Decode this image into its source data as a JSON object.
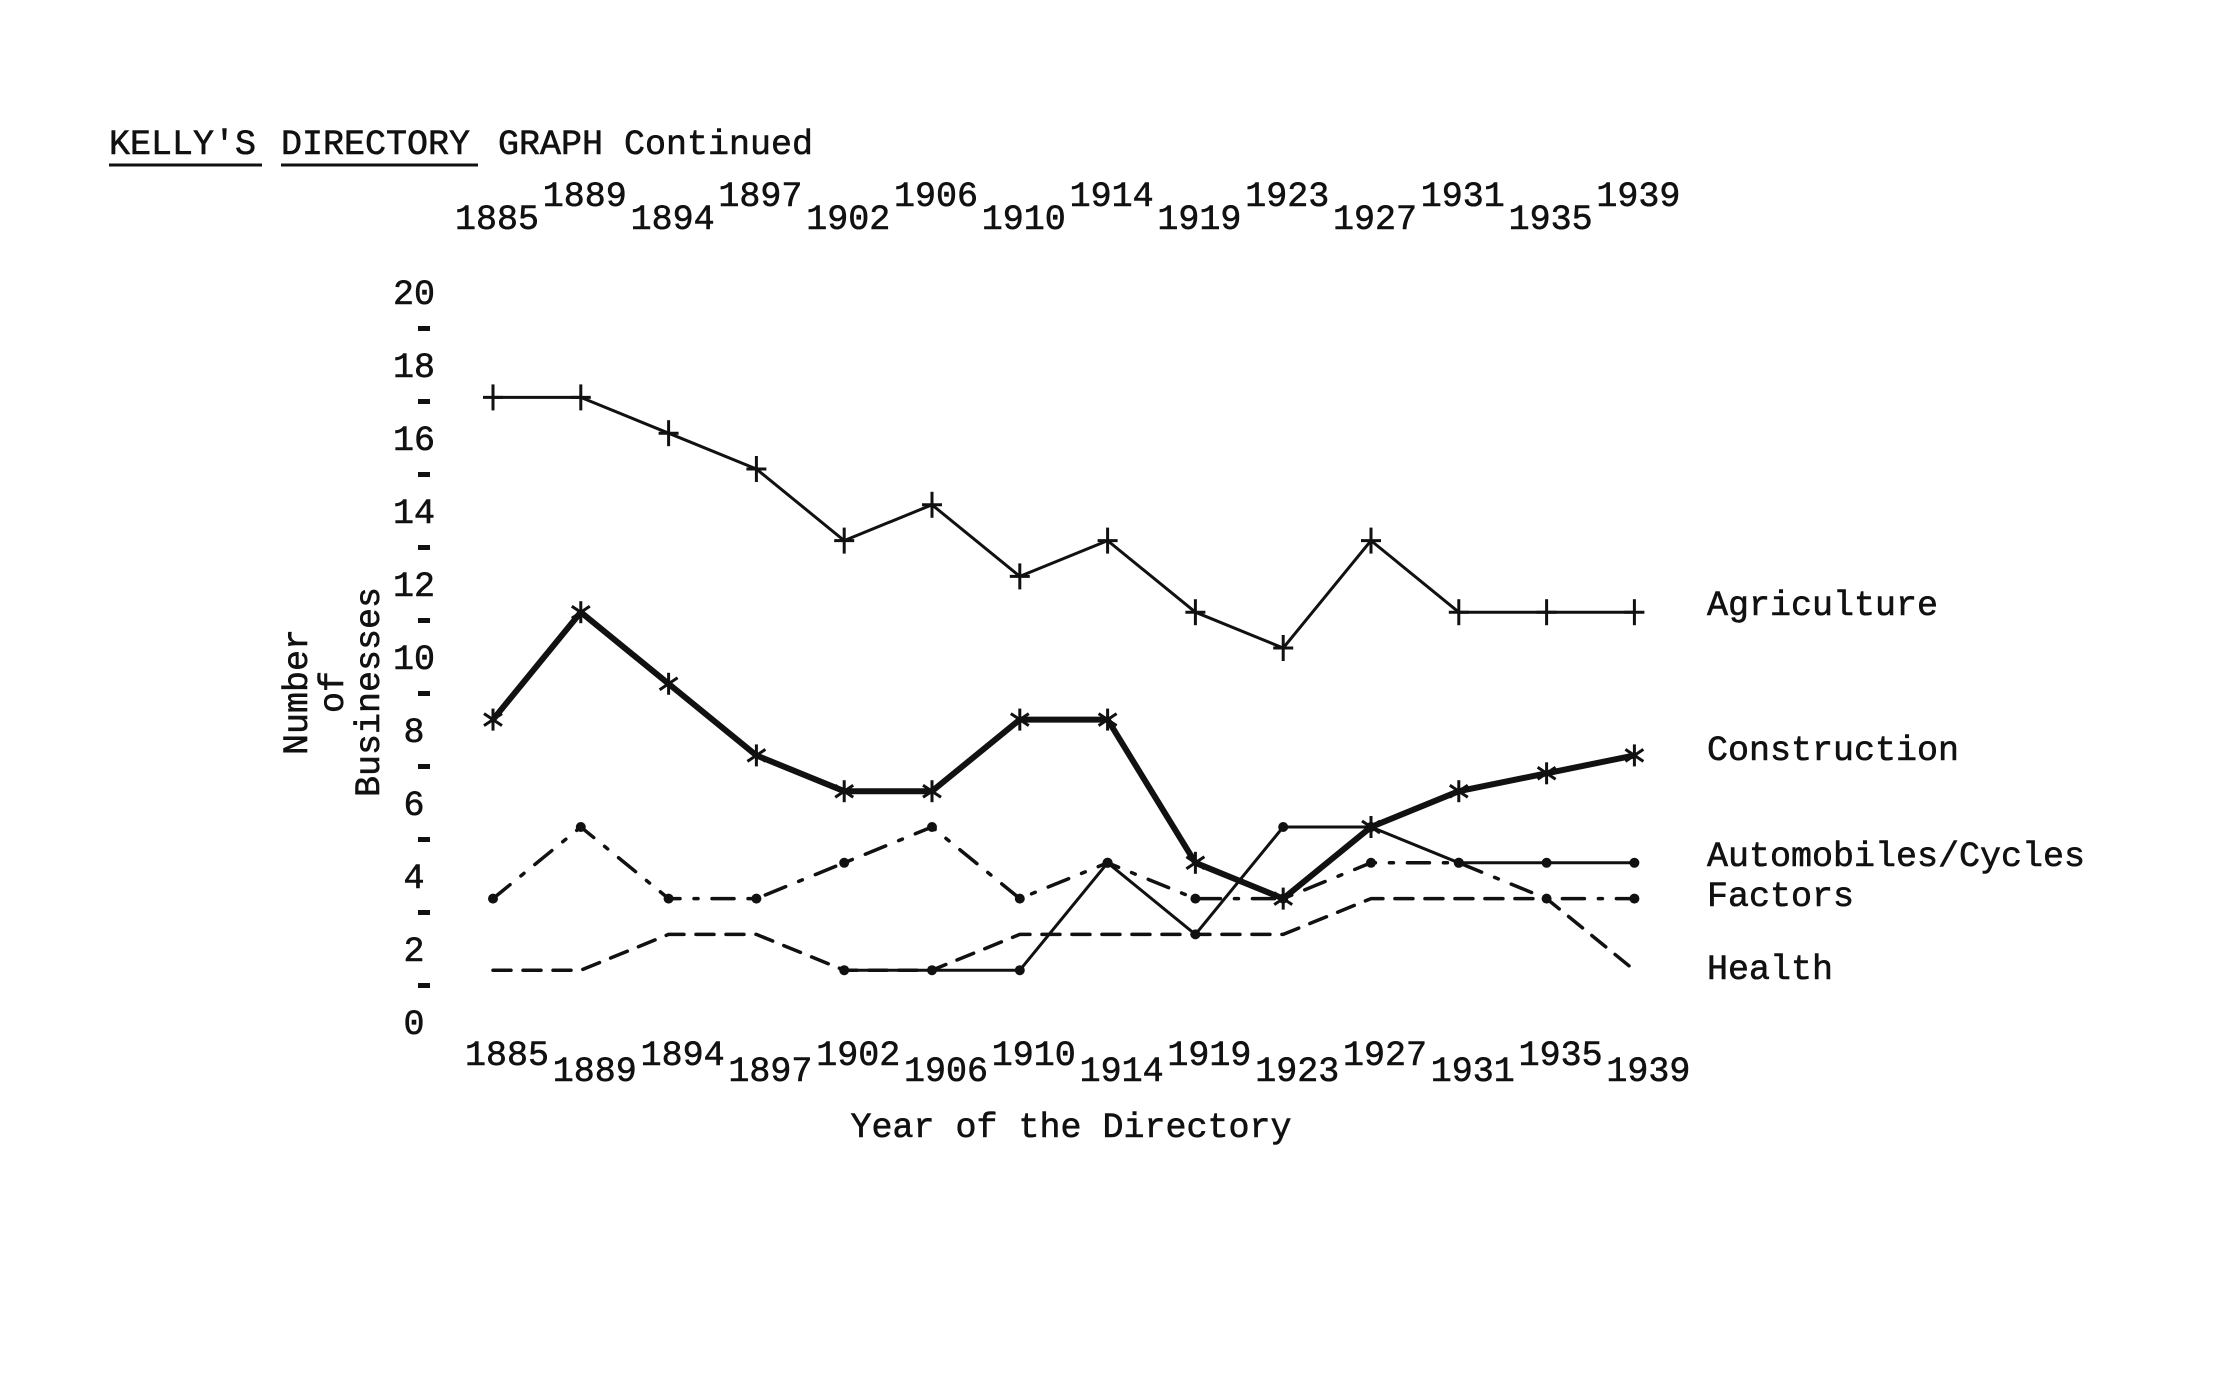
{
  "title": {
    "part1": "KELLY'S",
    "part2": "DIRECTORY",
    "part3": "GRAPH Continued"
  },
  "chart_data": {
    "type": "line",
    "title": "KELLY'S DIRECTORY GRAPH Continued",
    "xlabel": "Year of the Directory",
    "ylabel": [
      "Number",
      "of",
      "Businesses"
    ],
    "x": [
      "1885",
      "1889",
      "1894",
      "1897",
      "1902",
      "1906",
      "1910",
      "1914",
      "1919",
      "1923",
      "1927",
      "1931",
      "1935",
      "1939"
    ],
    "y_ticks": [
      "0",
      "2",
      "4",
      "6",
      "8",
      "10",
      "12",
      "14",
      "16",
      "18",
      "20"
    ],
    "ylim": [
      0,
      20
    ],
    "grid": false,
    "legend": "right (labels at line ends)",
    "series": [
      {
        "name": "Agriculture",
        "marker": "plus",
        "style": "solid",
        "values": [
          17,
          17,
          16,
          15,
          13,
          14,
          12,
          13,
          11,
          10,
          13,
          11,
          11,
          11
        ]
      },
      {
        "name": "Construction",
        "marker": "asterisk",
        "style": "solid-thick",
        "values": [
          8,
          11,
          9,
          7,
          6,
          6,
          8,
          8,
          4,
          3,
          5,
          6,
          6.5,
          7
        ]
      },
      {
        "name": "Automobiles/Cycles",
        "marker": "dot",
        "style": "solid",
        "values": [
          null,
          null,
          null,
          null,
          1,
          1,
          1,
          4,
          2,
          5,
          5,
          4,
          4,
          4
        ]
      },
      {
        "name": "Factors",
        "marker": "dot",
        "style": "dash-dot",
        "values": [
          3,
          5,
          3,
          3,
          4,
          5,
          3,
          4,
          3,
          3,
          4,
          4,
          3,
          3
        ]
      },
      {
        "name": "Health",
        "marker": "none",
        "style": "dashed",
        "values": [
          1,
          1,
          2,
          2,
          1,
          1,
          2,
          2,
          2,
          2,
          3,
          3,
          3,
          1
        ]
      }
    ],
    "line_color": "#111111",
    "background": "#ffffff"
  }
}
